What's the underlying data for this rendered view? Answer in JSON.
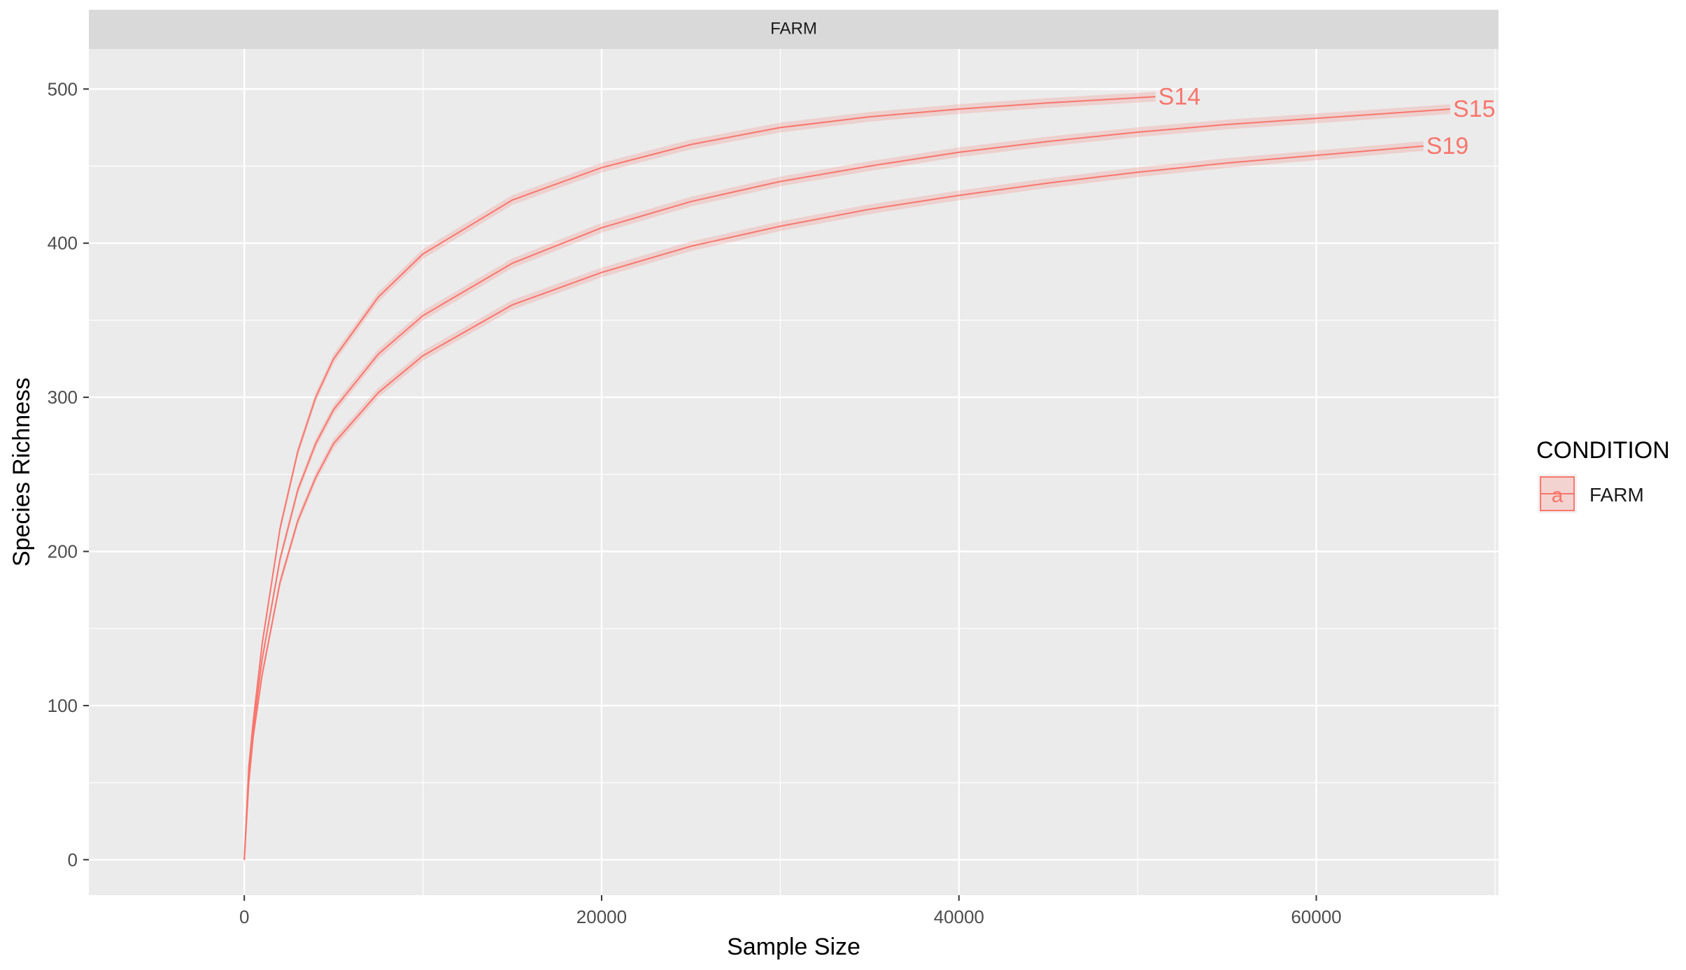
{
  "chart_data": {
    "type": "line",
    "facet_label": "FARM",
    "xlabel": "Sample Size",
    "ylabel": "Species Richness",
    "xlim": [
      -8700,
      70200
    ],
    "ylim": [
      -23,
      526
    ],
    "x_ticks": [
      0,
      20000,
      40000,
      60000
    ],
    "y_ticks": [
      0,
      100,
      200,
      300,
      400,
      500
    ],
    "grid": true,
    "legend": {
      "position": "right",
      "title": "CONDITION",
      "entries": [
        {
          "label": "FARM",
          "key_glyph": "a",
          "color": "#F8766D"
        }
      ]
    },
    "series": [
      {
        "name": "S14",
        "x": [
          0,
          250,
          500,
          1000,
          2000,
          3000,
          4000,
          5000,
          7500,
          10000,
          15000,
          20000,
          25000,
          30000,
          35000,
          40000,
          45000,
          51000
        ],
        "y": [
          0,
          60,
          90,
          140,
          215,
          265,
          300,
          325,
          365,
          393,
          428,
          449,
          464,
          475,
          482,
          487,
          491,
          495
        ]
      },
      {
        "name": "S15",
        "x": [
          0,
          250,
          500,
          1000,
          2000,
          3000,
          4000,
          5000,
          7500,
          10000,
          15000,
          20000,
          25000,
          30000,
          35000,
          40000,
          45000,
          50000,
          55000,
          60000,
          67500
        ],
        "y": [
          0,
          55,
          85,
          130,
          195,
          240,
          270,
          292,
          328,
          353,
          387,
          410,
          427,
          440,
          450,
          459,
          466,
          472,
          477,
          481,
          487
        ]
      },
      {
        "name": "S19",
        "x": [
          0,
          250,
          500,
          1000,
          2000,
          3000,
          4000,
          5000,
          7500,
          10000,
          15000,
          20000,
          25000,
          30000,
          35000,
          40000,
          45000,
          50000,
          55000,
          60000,
          66000
        ],
        "y": [
          0,
          50,
          80,
          120,
          180,
          220,
          248,
          270,
          303,
          327,
          360,
          381,
          398,
          411,
          422,
          431,
          439,
          446,
          452,
          457,
          463
        ]
      }
    ],
    "line_color": "#F8766D",
    "ribbon_color": "#F8766D",
    "panel_background": "#EBEBEB",
    "strip_background": "#D9D9D9"
  }
}
